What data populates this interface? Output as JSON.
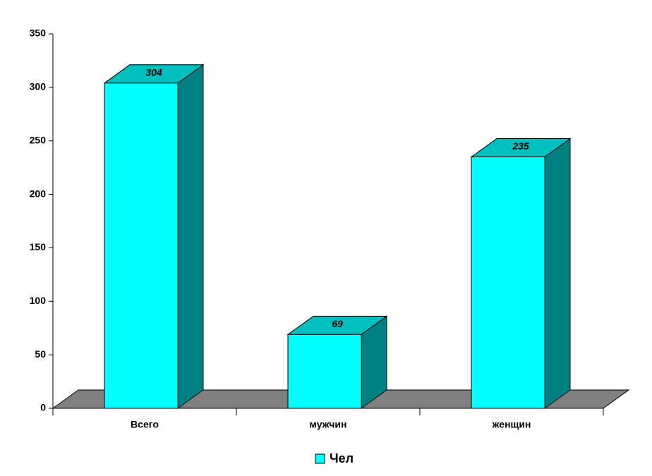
{
  "chart_data": {
    "type": "bar3d",
    "categories": [
      "Всего",
      "мужчин",
      "женщин"
    ],
    "series": [
      {
        "name": "Чел",
        "color": "#00ffff",
        "values": [
          304,
          69,
          235
        ]
      }
    ],
    "ylim": [
      0,
      350
    ],
    "yticks": [
      0,
      50,
      100,
      150,
      200,
      250,
      300,
      350
    ],
    "legend": "bottom"
  }
}
